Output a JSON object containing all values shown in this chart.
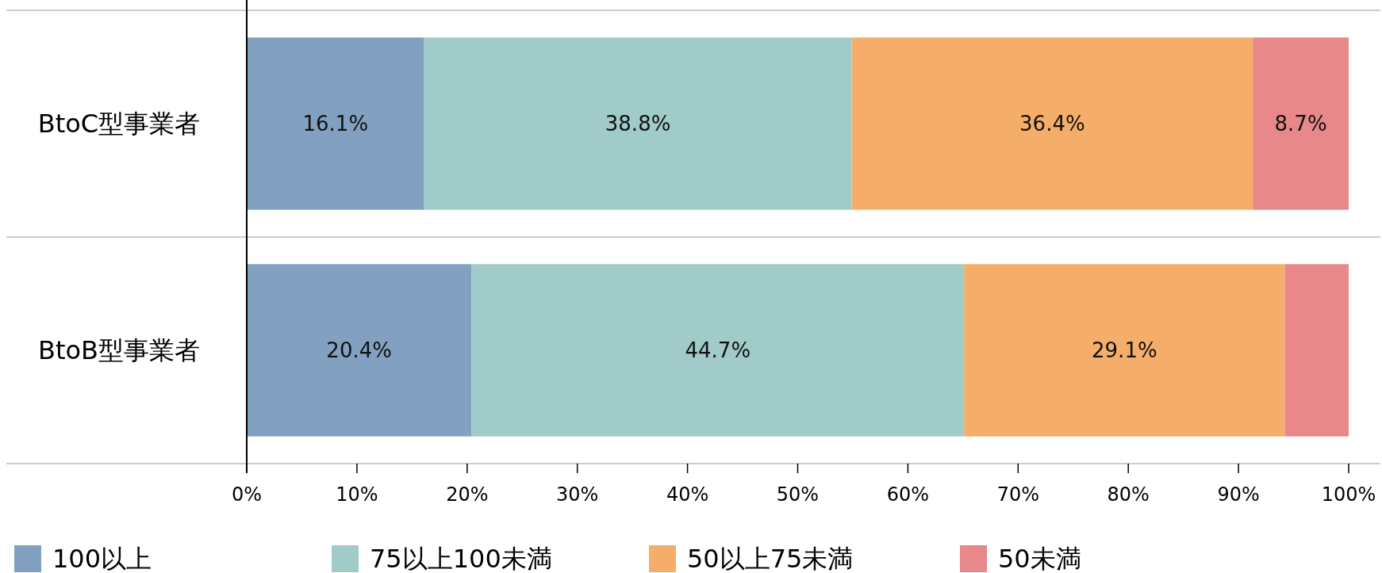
{
  "chart_data": {
    "type": "bar",
    "orientation": "horizontal",
    "stacked": true,
    "legend": "bottom",
    "categories": [
      "BtoC型事業者",
      "BtoB型事業者"
    ],
    "xlim": [
      0,
      100
    ],
    "xticks": [
      {
        "value": 0,
        "label": "0%"
      },
      {
        "value": 10,
        "label": "10%"
      },
      {
        "value": 20,
        "label": "20%"
      },
      {
        "value": 30,
        "label": "30%"
      },
      {
        "value": 40,
        "label": "40%"
      },
      {
        "value": 50,
        "label": "50%"
      },
      {
        "value": 60,
        "label": "60%"
      },
      {
        "value": 70,
        "label": "70%"
      },
      {
        "value": 80,
        "label": "80%"
      },
      {
        "value": 90,
        "label": "90%"
      },
      {
        "value": 100,
        "label": "100%"
      }
    ],
    "series": [
      {
        "name": "100以上",
        "color": "#82a1c0",
        "values": [
          16.1,
          20.4
        ],
        "value_labels": [
          "16.1%",
          "20.4%"
        ]
      },
      {
        "name": "75以上100未満",
        "color": "#a0cbc8",
        "values": [
          38.8,
          44.7
        ],
        "value_labels": [
          "38.8%",
          "44.7%"
        ]
      },
      {
        "name": "50以上75未満",
        "color": "#f4ae69",
        "values": [
          36.4,
          29.1
        ],
        "value_labels": [
          "36.4%",
          "29.1%"
        ]
      },
      {
        "name": "50未満",
        "color": "#e8888a",
        "values": [
          8.7,
          5.8
        ],
        "value_labels": [
          "8.7%",
          null
        ]
      }
    ]
  }
}
